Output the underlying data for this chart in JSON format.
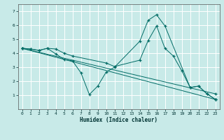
{
  "bg_color": "#c8eae8",
  "grid_color": "#ffffff",
  "line_color": "#006b65",
  "xlabel": "Humidex (Indice chaleur)",
  "xlim": [
    -0.5,
    23.5
  ],
  "ylim": [
    0,
    7.5
  ],
  "xticks": [
    0,
    1,
    2,
    3,
    4,
    5,
    6,
    7,
    8,
    9,
    10,
    11,
    12,
    13,
    14,
    15,
    16,
    17,
    18,
    19,
    20,
    21,
    22,
    23
  ],
  "yticks": [
    1,
    2,
    3,
    4,
    5,
    6,
    7
  ],
  "line1_x": [
    0,
    1,
    2,
    3,
    4,
    5,
    6,
    7,
    8,
    9,
    10,
    11,
    14,
    15,
    16,
    17,
    20,
    21,
    22,
    23
  ],
  "line1_y": [
    4.35,
    4.3,
    4.2,
    4.35,
    3.95,
    3.55,
    3.45,
    2.6,
    1.05,
    1.65,
    2.65,
    3.0,
    4.85,
    6.35,
    6.75,
    5.95,
    1.55,
    1.65,
    1.1,
    0.7
  ],
  "line2_x": [
    0,
    1,
    2,
    3,
    4,
    5,
    6,
    10,
    11,
    14,
    15,
    16,
    17,
    18,
    19,
    20,
    21,
    22,
    23
  ],
  "line2_y": [
    4.35,
    4.3,
    4.2,
    4.35,
    4.3,
    4.0,
    3.8,
    3.3,
    3.05,
    3.5,
    4.9,
    5.95,
    4.35,
    3.8,
    2.75,
    1.55,
    1.65,
    1.1,
    0.7
  ],
  "line3_x": [
    0,
    23
  ],
  "line3_y": [
    4.35,
    0.7
  ],
  "line4_x": [
    0,
    23
  ],
  "line4_y": [
    4.35,
    1.1
  ]
}
